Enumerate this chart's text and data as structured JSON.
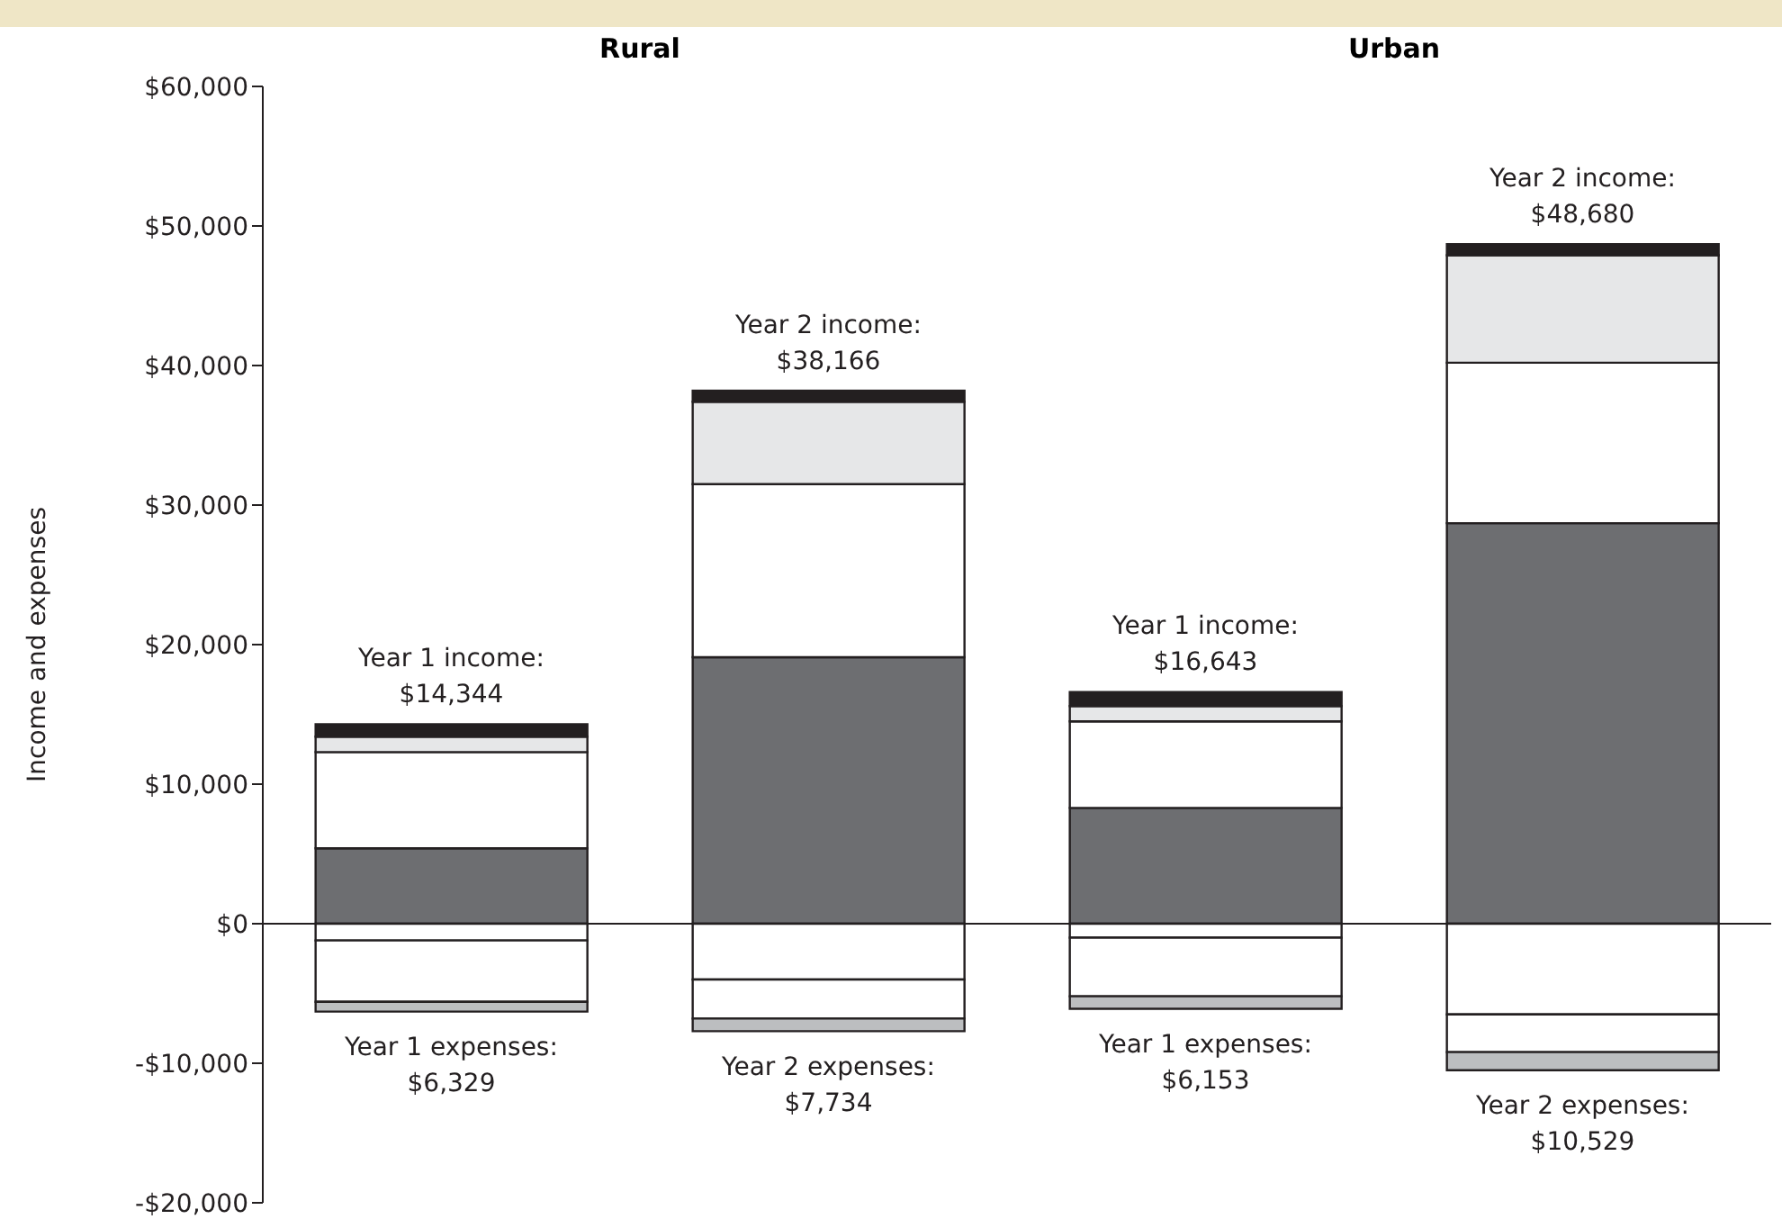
{
  "chart_data": {
    "type": "bar",
    "stacked": true,
    "ylabel": "Income and expenses",
    "categories": [
      null,
      null,
      null,
      null
    ],
    "series": [
      {
        "color": "#6d6e71",
        "values": [
          5400,
          19100,
          8300,
          28700
        ]
      },
      {
        "color": "#ffffff",
        "values": [
          6900,
          12400,
          6200,
          11500
        ]
      },
      {
        "color": "#e6e7e8",
        "values": [
          1100,
          5900,
          1100,
          7700
        ]
      },
      {
        "color": "#231f20",
        "values": [
          900,
          800,
          1000,
          800
        ]
      },
      {
        "color": "#ffffff",
        "values": [
          -1200,
          -4000,
          -1000,
          -6500
        ]
      },
      {
        "color": "#ffffff",
        "values": [
          -4400,
          -2800,
          -4200,
          -2700
        ]
      },
      {
        "color": "#bcbec0",
        "values": [
          -700,
          -900,
          -900,
          -1300
        ]
      }
    ],
    "ylim": [
      -20000,
      60000
    ],
    "yticks": [
      {
        "value": -20000,
        "label": "-$20,000"
      },
      {
        "value": -10000,
        "label": "-$10,000"
      },
      {
        "value": 0,
        "label": "$0"
      },
      {
        "value": 10000,
        "label": "$10,000"
      },
      {
        "value": 20000,
        "label": "$20,000"
      },
      {
        "value": 30000,
        "label": "$30,000"
      },
      {
        "value": 40000,
        "label": "$40,000"
      },
      {
        "value": 50000,
        "label": "$50,000"
      },
      {
        "value": 60000,
        "label": "$60,000"
      }
    ],
    "tick_labels": "y",
    "annotations": [
      "Rural",
      "Urban",
      {
        "text": "Year 1 income:\n$14,344",
        "y": 14344
      },
      {
        "text": "Year 1 expenses:\n$6,329",
        "y": -6329
      },
      {
        "text": "Year 2 income:\n$38,166",
        "y": 38166
      },
      {
        "text": "Year 2 expenses:\n$7,734",
        "y": -7734
      },
      {
        "text": "Year 1 income:\n$16,643",
        "y": 16643
      },
      {
        "text": "Year 1 expenses:\n$6,153",
        "y": -6153
      },
      {
        "text": "Year 2 income:\n$48,680",
        "y": 48680
      },
      {
        "text": "Year 2 expenses:\n$10,529",
        "y": -10529
      }
    ]
  }
}
